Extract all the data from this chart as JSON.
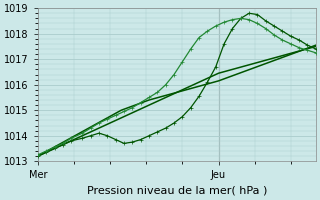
{
  "background_color": "#cce8e8",
  "plot_bg_color": "#cce8e8",
  "grid_color": "#aacccc",
  "ylim": [
    1013,
    1019
  ],
  "yticks": [
    1013,
    1014,
    1015,
    1016,
    1017,
    1018,
    1019
  ],
  "xlabel": "Pression niveau de la mer( hPa )",
  "xlabel_fontsize": 8,
  "tick_fontsize": 7,
  "xtick_labels": [
    "Mer",
    "Jeu"
  ],
  "xtick_pos": [
    0.0,
    0.65
  ],
  "vline_x": 0.65,
  "series": [
    {
      "x": [
        0.0,
        0.05,
        0.1,
        0.15,
        0.2,
        0.25,
        0.3,
        0.35,
        0.4,
        0.45,
        0.5,
        0.55,
        0.6,
        0.65,
        0.7,
        0.75,
        0.8,
        0.85,
        0.9,
        0.95,
        1.0
      ],
      "y": [
        1013.2,
        1013.45,
        1013.7,
        1013.95,
        1014.2,
        1014.45,
        1014.7,
        1014.95,
        1015.2,
        1015.45,
        1015.7,
        1015.95,
        1016.2,
        1016.45,
        1016.6,
        1016.75,
        1016.9,
        1017.05,
        1017.2,
        1017.35,
        1017.5
      ],
      "marker": null,
      "lw": 1.1,
      "color": "#005500"
    },
    {
      "x": [
        0.0,
        0.05,
        0.1,
        0.15,
        0.2,
        0.25,
        0.3,
        0.35,
        0.4,
        0.45,
        0.5,
        0.55,
        0.6,
        0.65,
        0.7,
        0.75,
        0.8,
        0.85,
        0.9,
        0.95,
        1.0
      ],
      "y": [
        1013.2,
        1013.5,
        1013.8,
        1014.1,
        1014.4,
        1014.7,
        1015.0,
        1015.2,
        1015.4,
        1015.55,
        1015.7,
        1015.85,
        1016.0,
        1016.15,
        1016.35,
        1016.55,
        1016.75,
        1016.95,
        1017.15,
        1017.35,
        1017.55
      ],
      "marker": null,
      "lw": 1.1,
      "color": "#005500"
    },
    {
      "x": [
        0.0,
        0.03,
        0.06,
        0.09,
        0.12,
        0.16,
        0.19,
        0.22,
        0.25,
        0.28,
        0.31,
        0.34,
        0.37,
        0.4,
        0.43,
        0.46,
        0.49,
        0.52,
        0.55,
        0.58,
        0.61,
        0.64,
        0.67,
        0.7,
        0.73,
        0.76,
        0.79,
        0.82,
        0.85,
        0.88,
        0.91,
        0.94,
        0.97,
        1.0
      ],
      "y": [
        1013.2,
        1013.35,
        1013.5,
        1013.65,
        1013.8,
        1013.9,
        1014.0,
        1014.1,
        1014.0,
        1013.85,
        1013.7,
        1013.75,
        1013.85,
        1014.0,
        1014.15,
        1014.3,
        1014.5,
        1014.75,
        1015.1,
        1015.55,
        1016.1,
        1016.7,
        1017.6,
        1018.2,
        1018.6,
        1018.8,
        1018.75,
        1018.5,
        1018.3,
        1018.1,
        1017.9,
        1017.75,
        1017.55,
        1017.4
      ],
      "marker": "+",
      "ms": 3.5,
      "lw": 0.9,
      "color": "#005500"
    },
    {
      "x": [
        0.0,
        0.03,
        0.06,
        0.09,
        0.12,
        0.16,
        0.19,
        0.22,
        0.25,
        0.28,
        0.31,
        0.34,
        0.37,
        0.4,
        0.43,
        0.46,
        0.49,
        0.52,
        0.55,
        0.58,
        0.61,
        0.64,
        0.67,
        0.7,
        0.73,
        0.76,
        0.79,
        0.82,
        0.85,
        0.88,
        0.91,
        0.94,
        0.97,
        1.0
      ],
      "y": [
        1013.25,
        1013.4,
        1013.55,
        1013.7,
        1013.9,
        1014.1,
        1014.3,
        1014.5,
        1014.65,
        1014.8,
        1014.95,
        1015.1,
        1015.3,
        1015.5,
        1015.7,
        1016.0,
        1016.4,
        1016.9,
        1017.4,
        1017.85,
        1018.1,
        1018.3,
        1018.45,
        1018.55,
        1018.6,
        1018.55,
        1018.4,
        1018.2,
        1017.95,
        1017.75,
        1017.6,
        1017.45,
        1017.35,
        1017.25
      ],
      "marker": "+",
      "ms": 3.5,
      "lw": 0.9,
      "color": "#228833"
    }
  ]
}
